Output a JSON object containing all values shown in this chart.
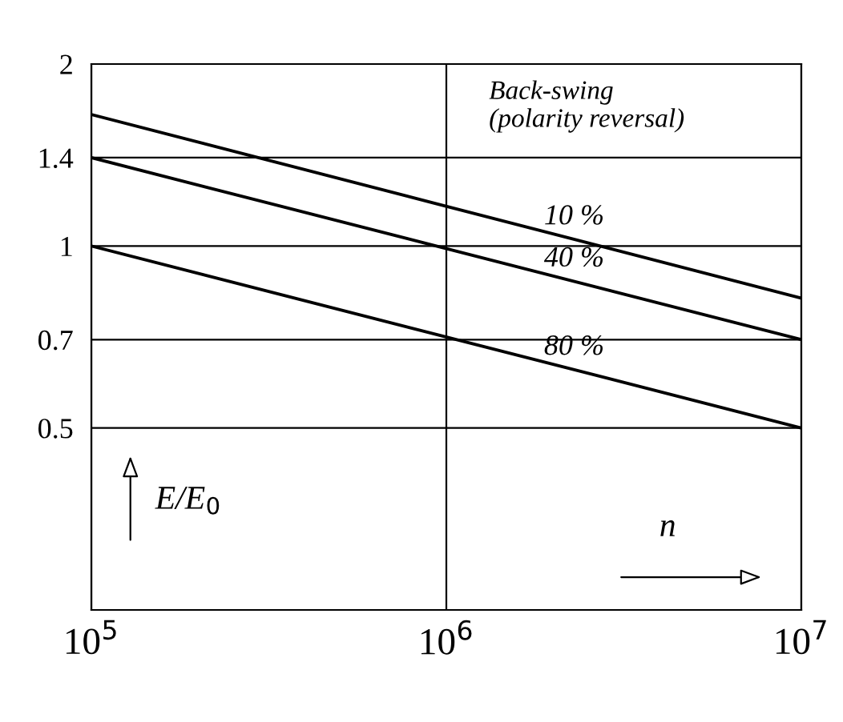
{
  "chart_data": {
    "type": "line",
    "log": "xy",
    "grid": true,
    "legend": false,
    "marker": "none",
    "line_style": "solid",
    "x": [
      100000,
      10000000
    ],
    "series": [
      {
        "name": "10 %",
        "color": "#000000",
        "values": [
          1.65,
          0.82
        ]
      },
      {
        "name": "40 %",
        "color": "#000000",
        "values": [
          1.4,
          0.7
        ]
      },
      {
        "name": "80 %",
        "color": "#000000",
        "values": [
          1.0,
          0.5
        ]
      }
    ],
    "xlim": [
      100000,
      10000000
    ],
    "ylim": [
      0.25,
      2
    ],
    "xticks": [
      {
        "value": 100000,
        "label": "10$^{5}$"
      },
      {
        "value": 1000000,
        "label": "10$^{6}$"
      },
      {
        "value": 10000000,
        "label": "10$^{7}$"
      }
    ],
    "yticks": [
      0.5,
      0.7,
      1,
      1.4,
      2
    ],
    "xlabel": "n",
    "ylabel": "E/E$_{0}$",
    "annotations": [
      "Back-swing\n(polarity reversal)"
    ]
  }
}
